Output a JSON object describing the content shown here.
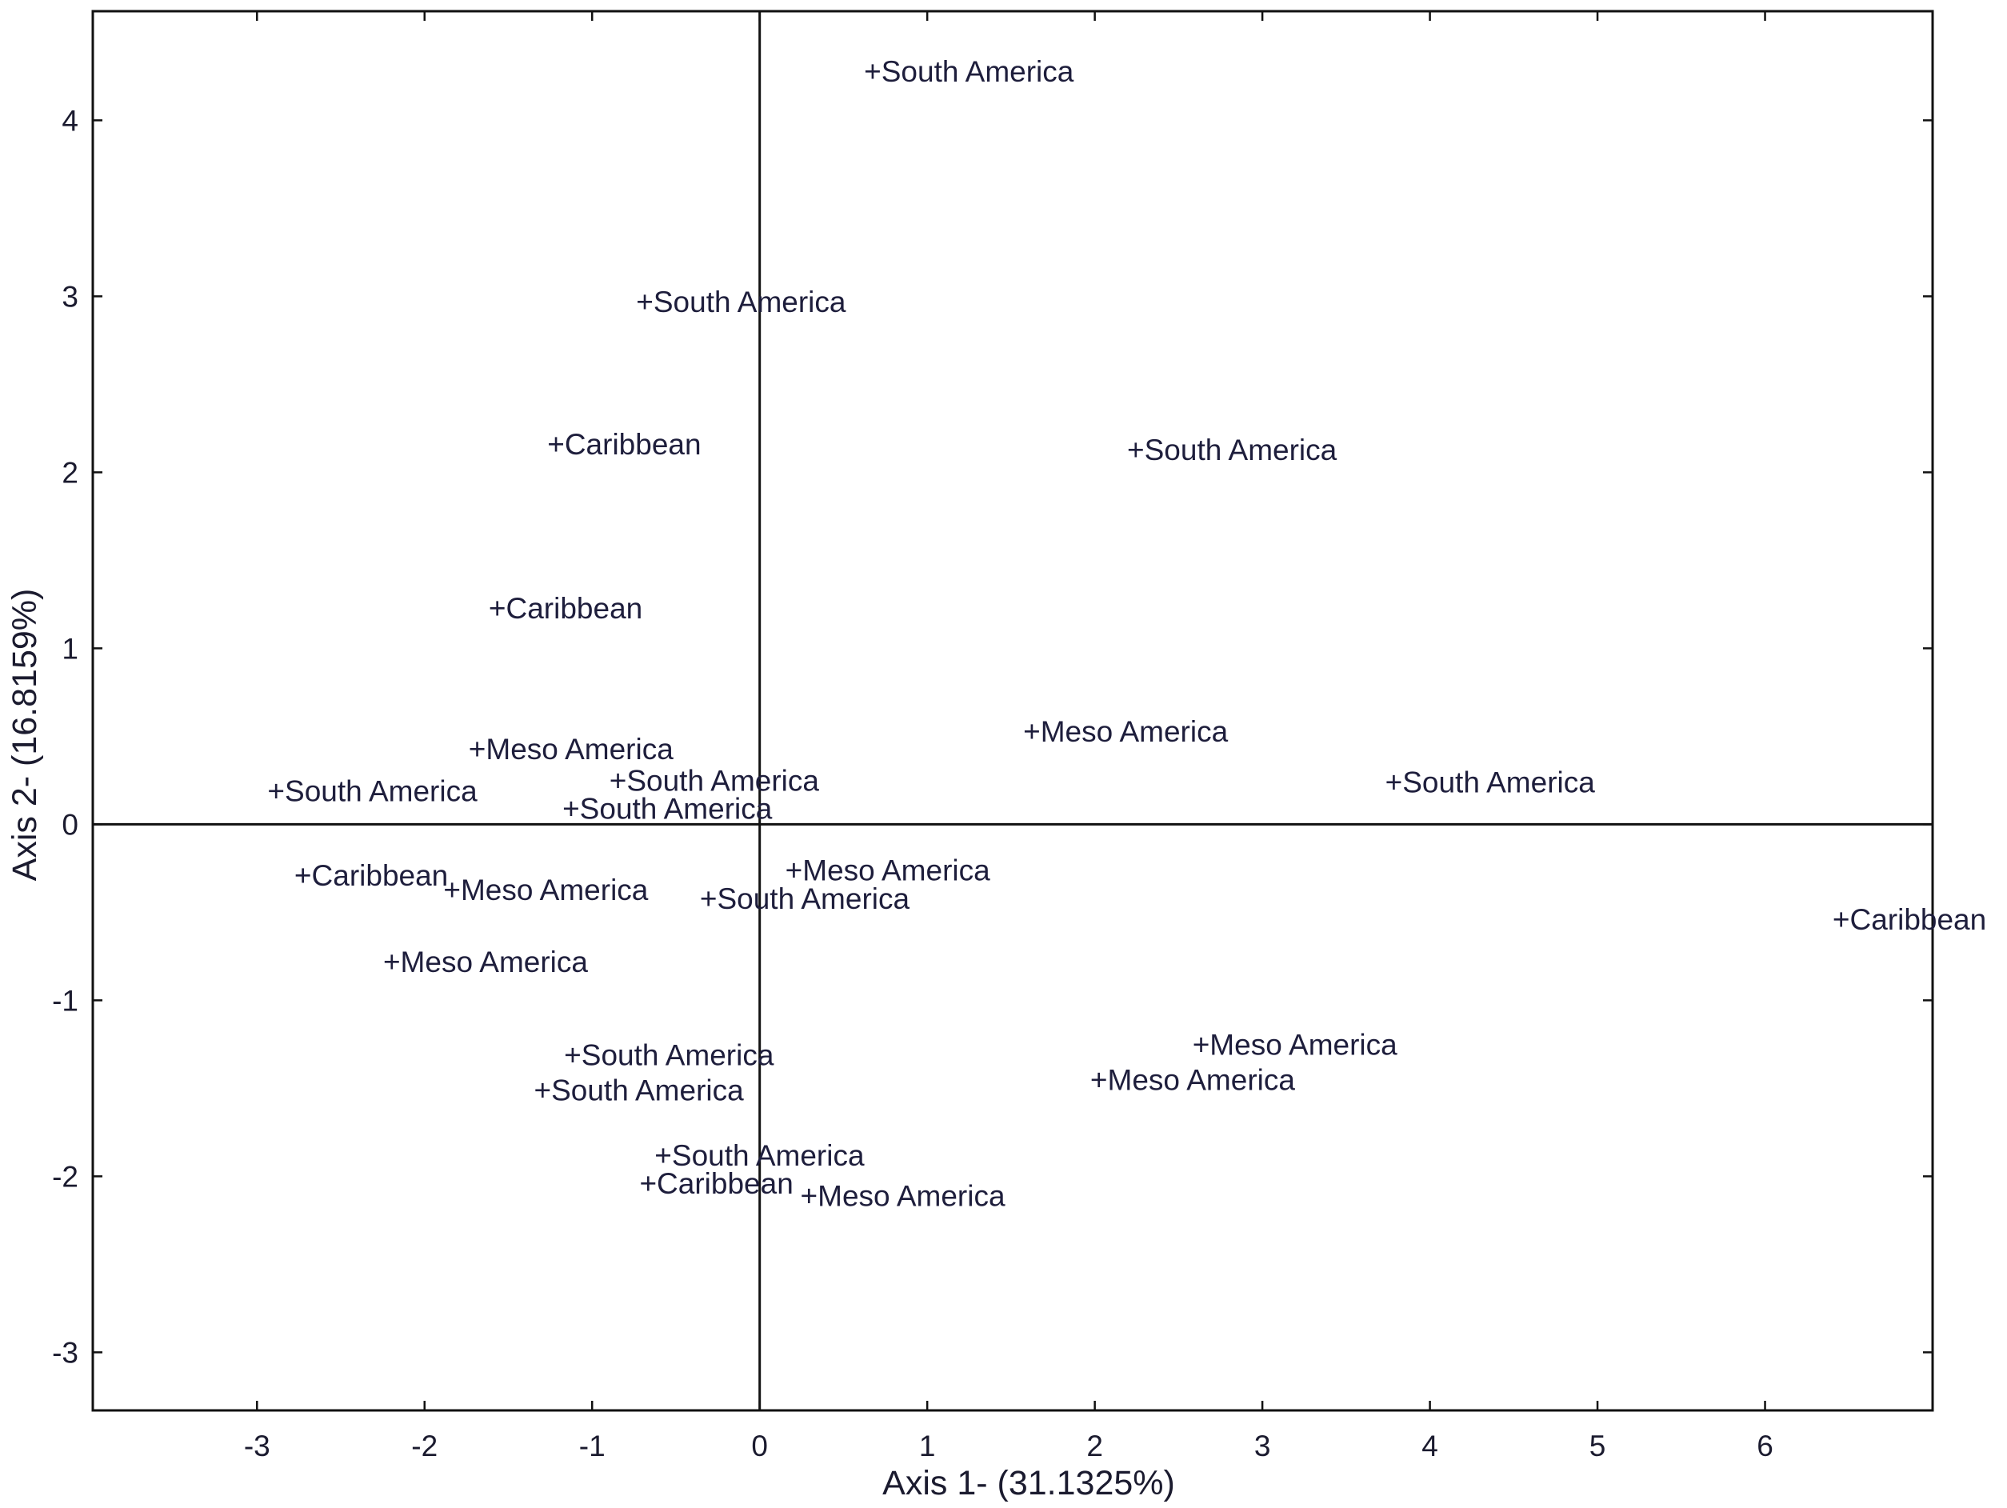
{
  "chart_data": {
    "type": "scatter",
    "xlabel": "Axis 1- (31.1325%)",
    "ylabel": "Axis 2- (16.8159%)",
    "xlim": [
      -3.98,
      7.0
    ],
    "ylim": [
      -3.33,
      4.62
    ],
    "x_ticks": [
      -3,
      -2,
      -1,
      0,
      1,
      2,
      3,
      4,
      5,
      6
    ],
    "y_ticks": [
      -3,
      -2,
      -1,
      0,
      1,
      2,
      3,
      4
    ],
    "reference_lines": {
      "x": 0,
      "y": 0
    },
    "colors": {
      "text": "#1e1e3c",
      "axis": "#111111",
      "frame": "#111111"
    },
    "points": [
      {
        "x": 0.68,
        "y": 4.28,
        "label": "+South America"
      },
      {
        "x": -0.68,
        "y": 2.97,
        "label": "+South America"
      },
      {
        "x": -1.21,
        "y": 2.16,
        "label": "+Caribbean"
      },
      {
        "x": 2.25,
        "y": 2.13,
        "label": "+South America"
      },
      {
        "x": -1.56,
        "y": 1.23,
        "label": "+Caribbean"
      },
      {
        "x": 1.63,
        "y": 0.53,
        "label": "+Meso America"
      },
      {
        "x": -1.68,
        "y": 0.43,
        "label": "+Meso America"
      },
      {
        "x": -0.84,
        "y": 0.25,
        "label": "+South America"
      },
      {
        "x": 3.79,
        "y": 0.24,
        "label": "+South America"
      },
      {
        "x": -2.88,
        "y": 0.19,
        "label": "+South America"
      },
      {
        "x": -1.12,
        "y": 0.09,
        "label": "+South America"
      },
      {
        "x": 0.21,
        "y": -0.26,
        "label": "+Meso America"
      },
      {
        "x": -2.72,
        "y": -0.29,
        "label": "+Caribbean"
      },
      {
        "x": -1.83,
        "y": -0.37,
        "label": "+Meso America"
      },
      {
        "x": -0.3,
        "y": -0.42,
        "label": "+South America"
      },
      {
        "x": 6.46,
        "y": -0.54,
        "label": "+Caribbean"
      },
      {
        "x": -2.19,
        "y": -0.78,
        "label": "+Meso America"
      },
      {
        "x": 2.64,
        "y": -1.25,
        "label": "+Meso America"
      },
      {
        "x": -1.11,
        "y": -1.31,
        "label": "+South America"
      },
      {
        "x": 2.03,
        "y": -1.45,
        "label": "+Meso America"
      },
      {
        "x": -1.29,
        "y": -1.51,
        "label": "+South America"
      },
      {
        "x": -0.57,
        "y": -1.88,
        "label": "+South America"
      },
      {
        "x": -0.66,
        "y": -2.04,
        "label": "+Caribbean"
      },
      {
        "x": 0.3,
        "y": -2.11,
        "label": "+Meso America"
      }
    ]
  }
}
